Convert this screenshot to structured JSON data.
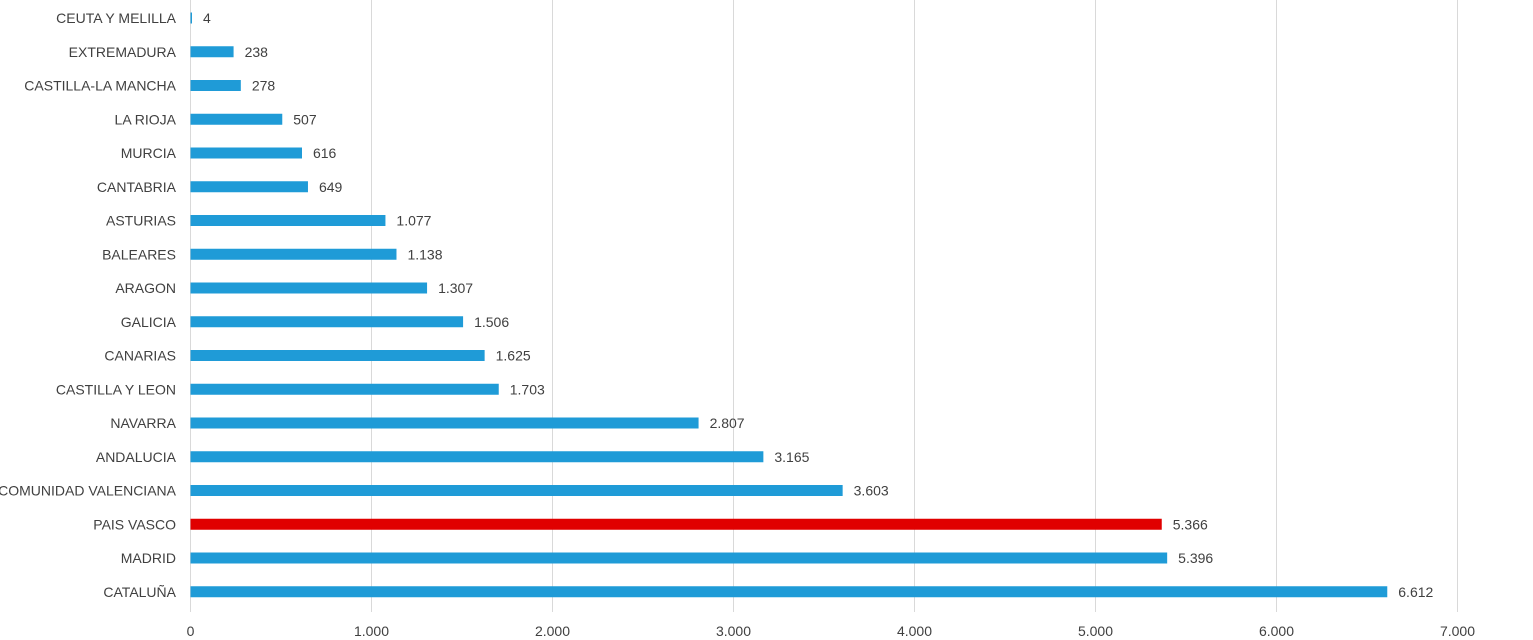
{
  "chart_data": {
    "type": "bar",
    "orientation": "horizontal",
    "title": "",
    "xlabel": "",
    "ylabel": "",
    "xlim": [
      0,
      7000
    ],
    "x_ticks": [
      0,
      1000,
      2000,
      3000,
      4000,
      5000,
      6000,
      7000
    ],
    "x_tick_labels": [
      "0",
      "1.000",
      "2.000",
      "3.000",
      "4.000",
      "5.000",
      "6.000",
      "7.000"
    ],
    "grid": true,
    "categories": [
      "CEUTA Y MELILLA",
      "EXTREMADURA",
      "CASTILLA-LA MANCHA",
      "LA RIOJA",
      "MURCIA",
      "CANTABRIA",
      "ASTURIAS",
      "BALEARES",
      "ARAGON",
      "GALICIA",
      "CANARIAS",
      "CASTILLA Y LEON",
      "NAVARRA",
      "ANDALUCIA",
      "COMUNIDAD VALENCIANA",
      "PAIS VASCO",
      "MADRID",
      "CATALUÑA"
    ],
    "values": [
      4,
      238,
      278,
      507,
      616,
      649,
      1077,
      1138,
      1307,
      1506,
      1625,
      1703,
      2807,
      3165,
      3603,
      5366,
      5396,
      6612
    ],
    "value_labels": [
      "4",
      "238",
      "278",
      "507",
      "616",
      "649",
      "1.077",
      "1.138",
      "1.307",
      "1.506",
      "1.625",
      "1.703",
      "2.807",
      "3.165",
      "3.603",
      "5.366",
      "5.396",
      "6.612"
    ],
    "colors": {
      "default": "#1f9bd7",
      "highlight": "#e00000",
      "highlight_category": "PAIS VASCO",
      "grid": "#d9d9d9",
      "text": "#404040"
    }
  }
}
